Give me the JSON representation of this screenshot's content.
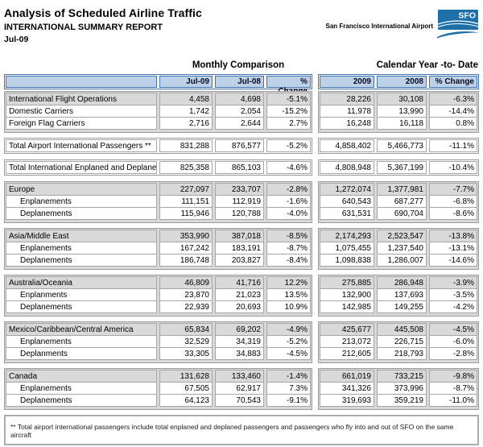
{
  "header": {
    "title": "Analysis of Scheduled Airline Traffic",
    "subtitle": "INTERNATIONAL SUMMARY REPORT",
    "period": "Jul-09",
    "airport_name": "San Francisco International Airport",
    "logo_text": "SFO"
  },
  "colors": {
    "logo_blue": "#1F6FA8",
    "header_cell_blue": "#BDD2E9",
    "header_border_blue": "#4472A8",
    "row_gray": "#D9D9D9",
    "cell_border_gray": "#A6A6A6"
  },
  "table": {
    "monthly_title": "Monthly Comparison",
    "ytd_title": "Calendar Year -to- Date",
    "monthly_columns": [
      "Jul-09",
      "Jul-08",
      "% Change"
    ],
    "ytd_columns": [
      "2009",
      "2008",
      "% Change"
    ],
    "groups": [
      {
        "rows": [
          {
            "label": "International Flight Operations",
            "style": "gray",
            "monthly": [
              "4,458",
              "4,698",
              "-5.1%"
            ],
            "ytd": [
              "28,226",
              "30,108",
              "-6.3%"
            ]
          },
          {
            "label": "Domestic Carriers",
            "style": "white",
            "monthly": [
              "1,742",
              "2,054",
              "-15.2%"
            ],
            "ytd": [
              "11,978",
              "13,990",
              "-14.4%"
            ]
          },
          {
            "label": "Foreign Flag Carriers",
            "style": "white",
            "monthly": [
              "2,716",
              "2,644",
              "2.7%"
            ],
            "ytd": [
              "16,248",
              "16,118",
              "0.8%"
            ]
          }
        ]
      },
      {
        "rows": [
          {
            "label": "Total Airport International Passengers **",
            "style": "white",
            "monthly": [
              "831,288",
              "876,577",
              "-5.2%"
            ],
            "ytd": [
              "4,858,402",
              "5,466,773",
              "-11.1%"
            ]
          }
        ]
      },
      {
        "rows": [
          {
            "label": "Total International Enplaned and Deplaned",
            "style": "white",
            "monthly": [
              "825,358",
              "865,103",
              "-4.6%"
            ],
            "ytd": [
              "4,808,948",
              "5,367,199",
              "-10.4%"
            ]
          }
        ]
      },
      {
        "rows": [
          {
            "label": "Europe",
            "style": "gray",
            "monthly": [
              "227,097",
              "233,707",
              "-2.8%"
            ],
            "ytd": [
              "1,272,074",
              "1,377,981",
              "-7.7%"
            ]
          },
          {
            "label": "Enplanements",
            "style": "indent",
            "monthly": [
              "111,151",
              "112,919",
              "-1.6%"
            ],
            "ytd": [
              "640,543",
              "687,277",
              "-6.8%"
            ]
          },
          {
            "label": "Deplanements",
            "style": "indent",
            "monthly": [
              "115,946",
              "120,788",
              "-4.0%"
            ],
            "ytd": [
              "631,531",
              "690,704",
              "-8.6%"
            ]
          }
        ]
      },
      {
        "rows": [
          {
            "label": "Asia/Middle East",
            "style": "gray",
            "monthly": [
              "353,990",
              "387,018",
              "-8.5%"
            ],
            "ytd": [
              "2,174,293",
              "2,523,547",
              "-13.8%"
            ]
          },
          {
            "label": "Enplanements",
            "style": "indent",
            "monthly": [
              "167,242",
              "183,191",
              "-8.7%"
            ],
            "ytd": [
              "1,075,455",
              "1,237,540",
              "-13.1%"
            ]
          },
          {
            "label": "Deplanements",
            "style": "indent",
            "monthly": [
              "186,748",
              "203,827",
              "-8.4%"
            ],
            "ytd": [
              "1,098,838",
              "1,286,007",
              "-14.6%"
            ]
          }
        ]
      },
      {
        "rows": [
          {
            "label": "Australia/Oceania",
            "style": "gray",
            "monthly": [
              "46,809",
              "41,716",
              "12.2%"
            ],
            "ytd": [
              "275,885",
              "286,948",
              "-3.9%"
            ]
          },
          {
            "label": "Enplanments",
            "style": "indent",
            "monthly": [
              "23,870",
              "21,023",
              "13.5%"
            ],
            "ytd": [
              "132,900",
              "137,693",
              "-3.5%"
            ]
          },
          {
            "label": "Deplanements",
            "style": "indent",
            "monthly": [
              "22,939",
              "20,693",
              "10.9%"
            ],
            "ytd": [
              "142,985",
              "149,255",
              "-4.2%"
            ]
          }
        ]
      },
      {
        "rows": [
          {
            "label": "Mexico/Caribbean/Central America",
            "style": "gray",
            "monthly": [
              "65,834",
              "69,202",
              "-4.9%"
            ],
            "ytd": [
              "425,677",
              "445,508",
              "-4.5%"
            ]
          },
          {
            "label": "Enplanements",
            "style": "indent",
            "monthly": [
              "32,529",
              "34,319",
              "-5.2%"
            ],
            "ytd": [
              "213,072",
              "226,715",
              "-6.0%"
            ]
          },
          {
            "label": "Deplanments",
            "style": "indent",
            "monthly": [
              "33,305",
              "34,883",
              "-4.5%"
            ],
            "ytd": [
              "212,605",
              "218,793",
              "-2.8%"
            ]
          }
        ]
      },
      {
        "rows": [
          {
            "label": "Canada",
            "style": "gray",
            "monthly": [
              "131,628",
              "133,460",
              "-1.4%"
            ],
            "ytd": [
              "661,019",
              "733,215",
              "-9.8%"
            ]
          },
          {
            "label": "Enplanements",
            "style": "indent",
            "monthly": [
              "67,505",
              "62,917",
              "7.3%"
            ],
            "ytd": [
              "341,326",
              "373,996",
              "-8.7%"
            ]
          },
          {
            "label": "Deplanements",
            "style": "indent",
            "monthly": [
              "64,123",
              "70,543",
              "-9.1%"
            ],
            "ytd": [
              "319,693",
              "359,219",
              "-11.0%"
            ]
          }
        ]
      }
    ],
    "footnote": "** Total airport international passengers include total enplaned and deplaned passengers and passengers who fly into and out of SFO on the same aircraft"
  }
}
